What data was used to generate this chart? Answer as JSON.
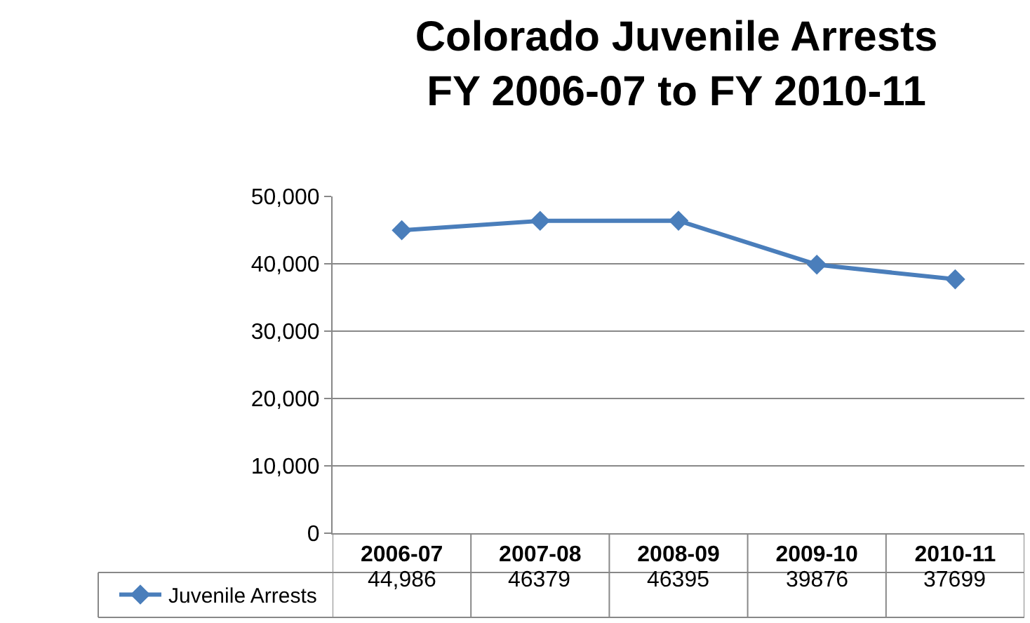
{
  "chart_data": {
    "type": "line",
    "title": "Colorado Juvenile Arrests\nFY 2006-07 to FY 2010-11",
    "categories": [
      "2006-07",
      "2007-08",
      "2008-09",
      "2009-10",
      "2010-11"
    ],
    "series": [
      {
        "name": "Juvenile Arrests",
        "color": "#4a7ebb",
        "values": [
          44986,
          46379,
          46395,
          39876,
          37699
        ],
        "value_labels": [
          "44,986",
          "46379",
          "46395",
          "39876",
          "37699"
        ]
      }
    ],
    "ylim": [
      0,
      50000
    ],
    "yticks": [
      {
        "value": 0,
        "label": "0"
      },
      {
        "value": 10000,
        "label": "10,000"
      },
      {
        "value": 20000,
        "label": "20,000"
      },
      {
        "value": 30000,
        "label": "30,000"
      },
      {
        "value": 40000,
        "label": "40,000"
      },
      {
        "value": 50000,
        "label": "50,000"
      }
    ],
    "grid": "y",
    "legend": "bottom",
    "marker": "diamond",
    "line_style": "solid"
  }
}
